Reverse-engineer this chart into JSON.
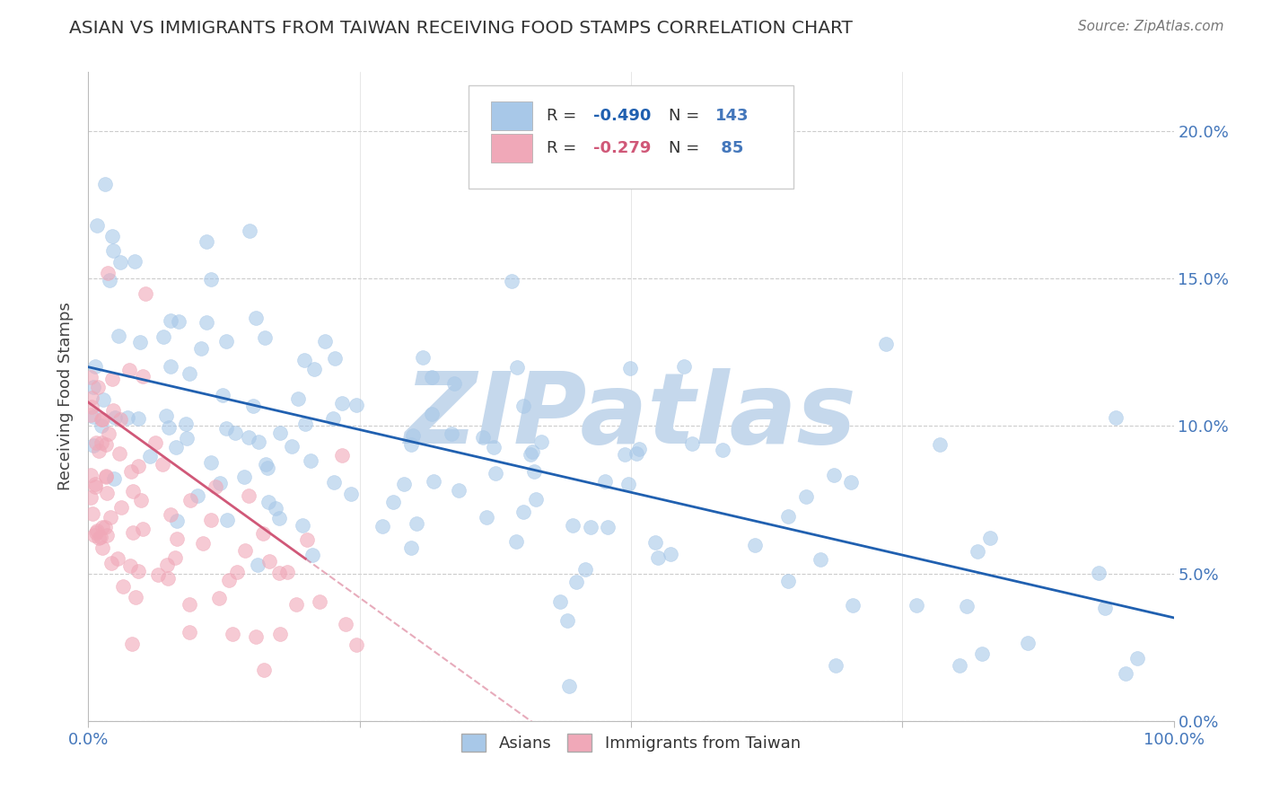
{
  "title": "ASIAN VS IMMIGRANTS FROM TAIWAN RECEIVING FOOD STAMPS CORRELATION CHART",
  "source": "Source: ZipAtlas.com",
  "ylabel": "Receiving Food Stamps",
  "xlim": [
    0.0,
    100.0
  ],
  "ylim": [
    0.0,
    22.0
  ],
  "yticks": [
    0.0,
    5.0,
    10.0,
    15.0,
    20.0
  ],
  "xticks_show": [
    0.0,
    25.0,
    50.0,
    75.0,
    100.0
  ],
  "xticks_label": [
    0.0,
    100.0
  ],
  "blue_R": -0.49,
  "blue_N": 143,
  "pink_R": -0.279,
  "pink_N": 85,
  "blue_color": "#A8C8E8",
  "pink_color": "#F0A8B8",
  "blue_line_color": "#2060B0",
  "pink_line_color": "#D05878",
  "blue_line_start_y": 12.0,
  "blue_line_end_y": 3.5,
  "pink_line_start_y": 10.8,
  "pink_line_solid_end_x": 20.0,
  "pink_line_solid_end_y": 5.5,
  "pink_line_dashed_end_x": 52.0,
  "pink_line_dashed_end_y": -2.0,
  "watermark": "ZIPatlas",
  "watermark_color": "#C5D8EC",
  "background_color": "#FFFFFF",
  "grid_color": "#CCCCCC",
  "title_color": "#333333",
  "tick_label_color": "#4477BB",
  "legend_R_color": "#2060B0",
  "legend_N_color": "#4477BB",
  "legend_text_color": "#333333"
}
